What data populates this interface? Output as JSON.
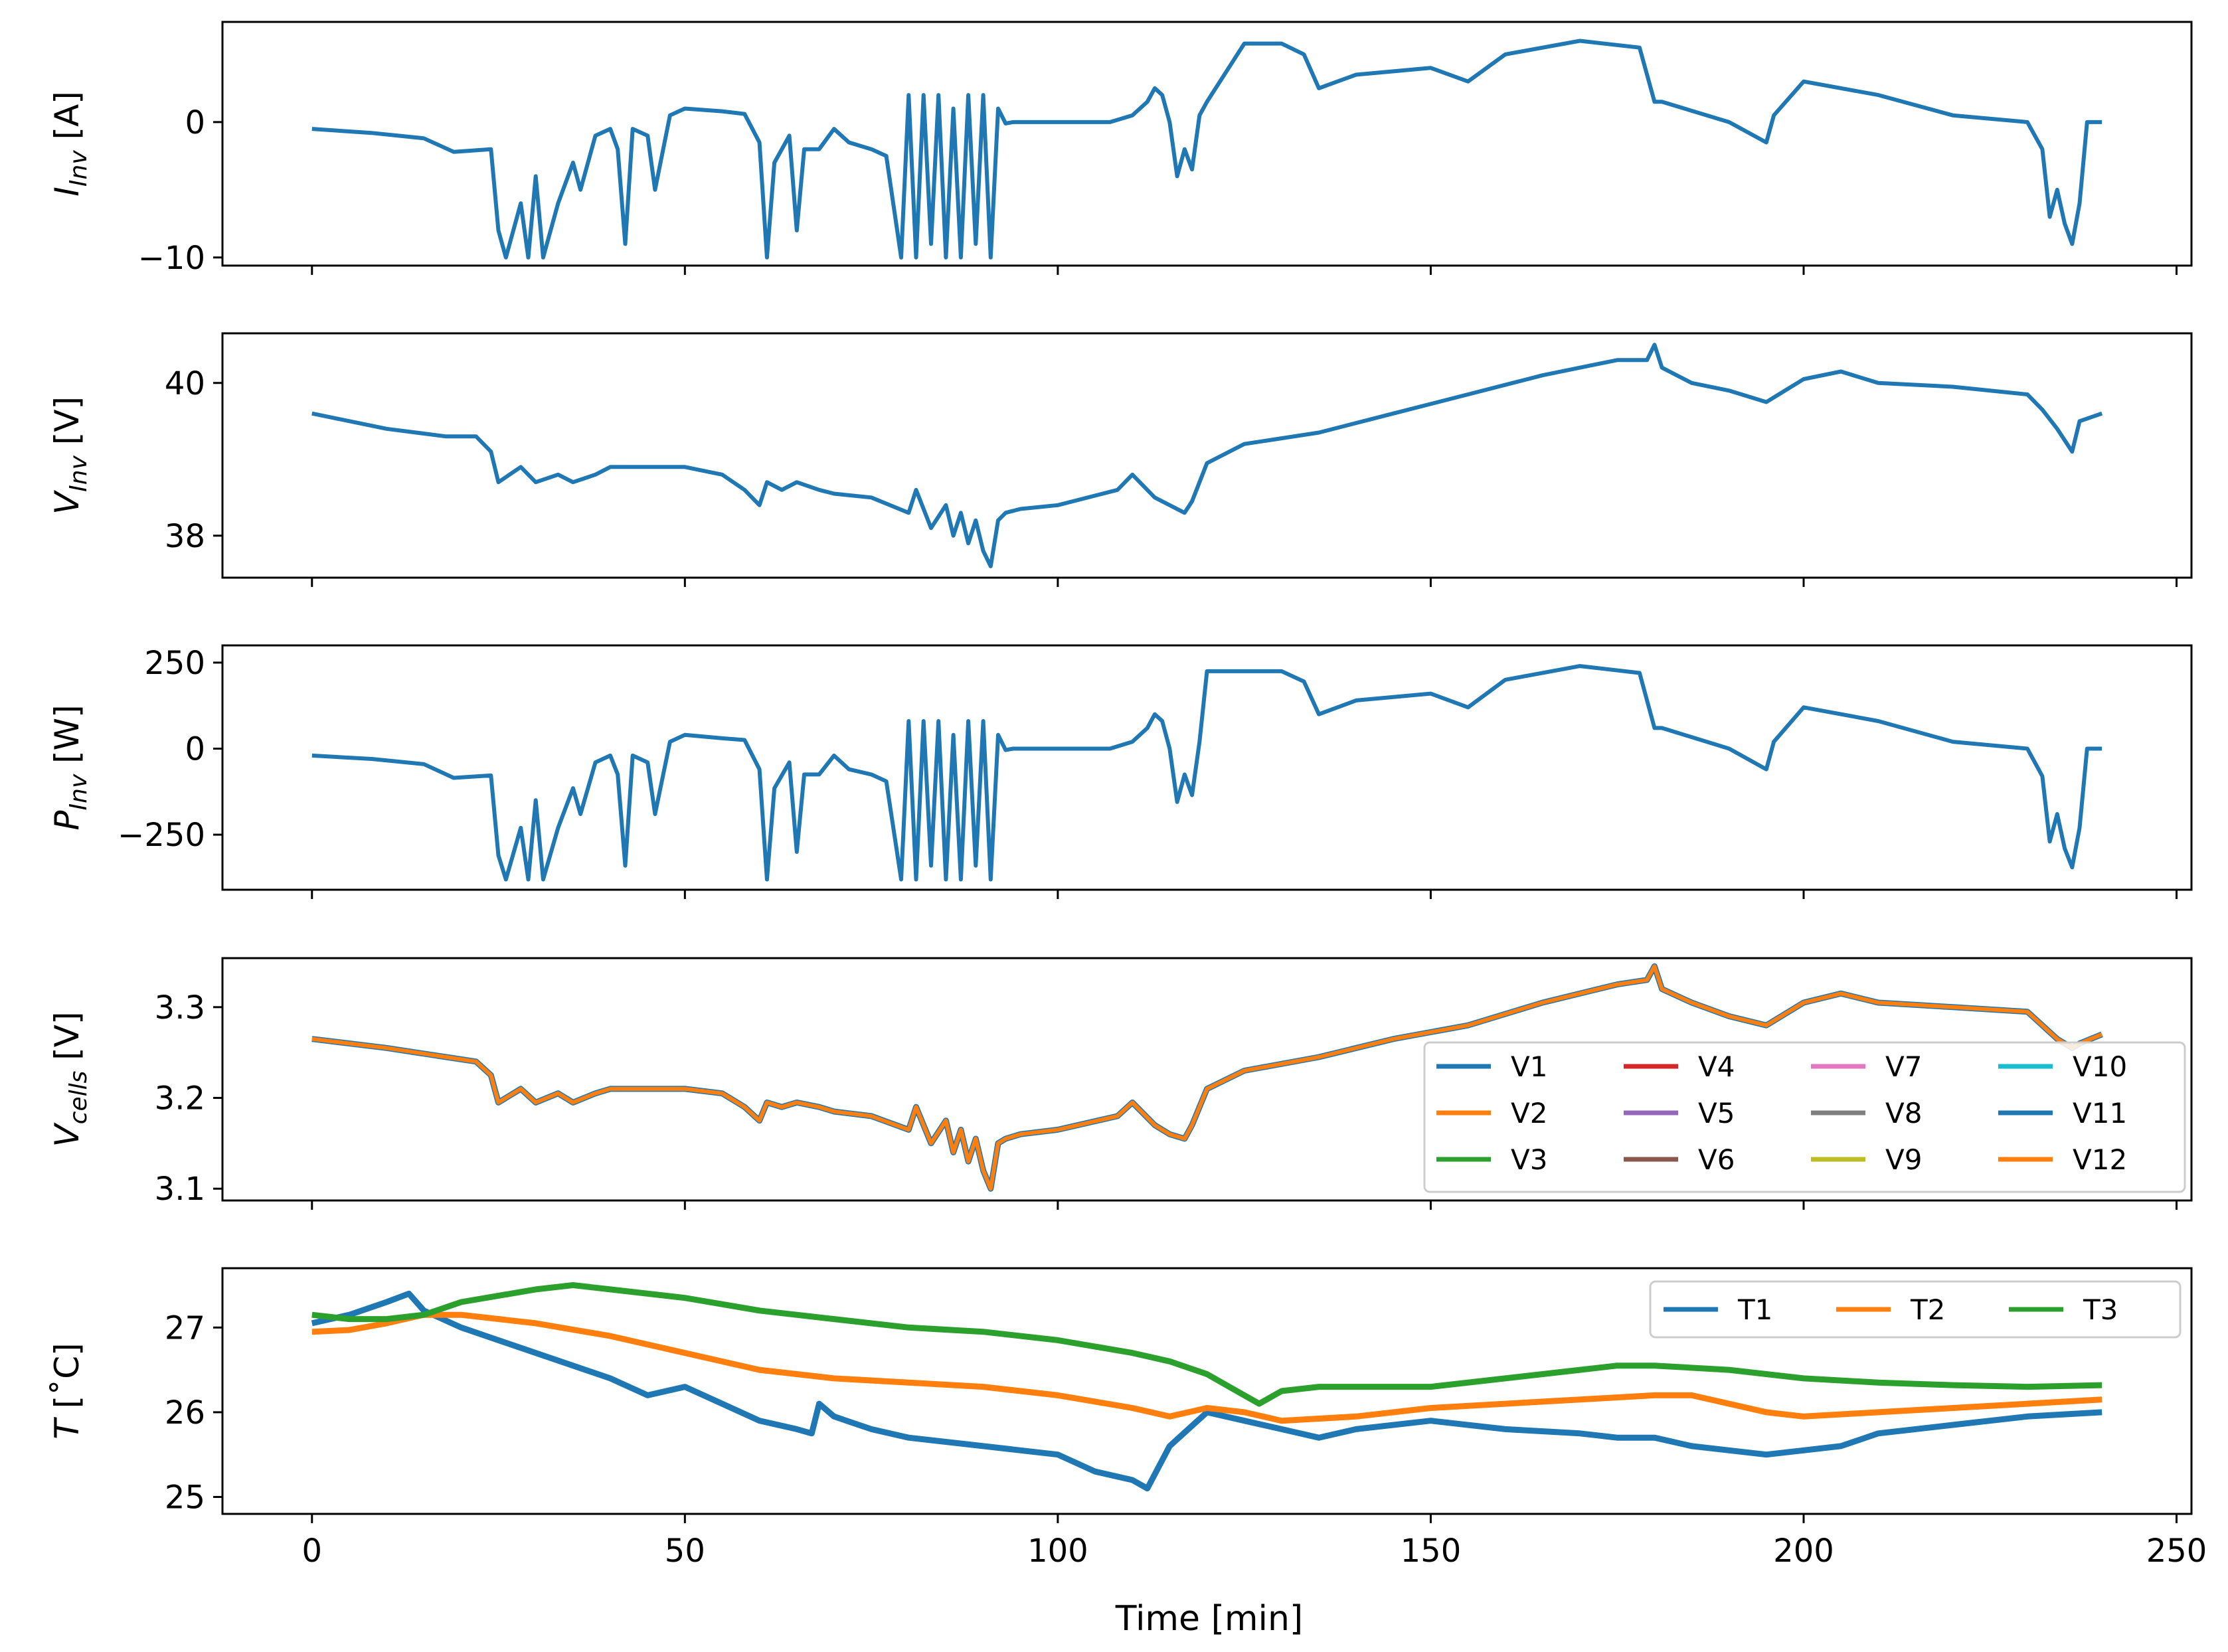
{
  "figure": {
    "xlabel": "Time [min]",
    "xticks": [
      "0",
      "50",
      "100",
      "150",
      "200",
      "250"
    ]
  },
  "chart_data": [
    {
      "type": "line",
      "panel": "current",
      "ylabel": "I_Inv [A]",
      "ylabel_main": "I",
      "ylabel_sub": "Inv",
      "ylabel_unit": " [A]",
      "xlim": [
        -12,
        252
      ],
      "ylim": [
        -10.6,
        7.4
      ],
      "yticks": [
        0,
        -10
      ],
      "ytick_labels": [
        "0",
        "−10"
      ],
      "series": [
        {
          "name": "I_Inv",
          "color": "#1f77b4",
          "x": [
            0,
            8,
            15,
            19,
            24,
            25,
            26,
            28,
            29,
            30,
            31,
            33,
            35,
            36,
            38,
            40,
            41,
            42,
            43,
            45,
            46,
            48,
            50,
            55,
            58,
            60,
            61,
            62,
            64,
            65,
            66,
            68,
            70,
            72,
            75,
            77,
            79,
            80,
            81,
            82,
            83,
            84,
            85,
            86,
            87,
            88,
            89,
            90,
            91,
            92,
            93,
            94,
            95,
            100,
            107,
            110,
            112,
            113,
            114,
            115,
            116,
            117,
            118,
            119,
            120,
            125,
            130,
            133,
            135,
            140,
            150,
            155,
            160,
            170,
            178,
            180,
            181,
            190,
            195,
            196,
            200,
            210,
            220,
            230,
            232,
            233,
            234,
            235,
            236,
            237,
            238,
            239,
            240
          ],
          "y": [
            -0.5,
            -0.8,
            -1.2,
            -2.2,
            -2,
            -8,
            -10,
            -6,
            -10,
            -4,
            -10,
            -6,
            -3,
            -5,
            -1,
            -0.5,
            -2,
            -9,
            -0.5,
            -1,
            -5,
            0.5,
            1,
            0.8,
            0.6,
            -1.5,
            -10,
            -3,
            -1,
            -8,
            -2,
            -2,
            -0.5,
            -1.5,
            -2,
            -2.5,
            -10,
            2,
            -10,
            2,
            -9,
            2,
            -10,
            1,
            -10,
            2,
            -9,
            2,
            -10,
            1,
            -0.1,
            0,
            0,
            0,
            0,
            0.5,
            1.5,
            2.5,
            2.0,
            0,
            -4,
            -2,
            -3.5,
            0.5,
            1.5,
            5.8,
            5.8,
            5.0,
            2.5,
            3.5,
            4.0,
            3.0,
            5.0,
            6.0,
            5.5,
            1.5,
            1.5,
            0,
            -1.5,
            0.5,
            3.0,
            2.0,
            0.5,
            0,
            -2,
            -7,
            -5,
            -7.5,
            -9,
            -6,
            0,
            0,
            0
          ]
        }
      ]
    },
    {
      "type": "line",
      "panel": "voltage",
      "ylabel": "V_Inv [V]",
      "ylabel_main": "V",
      "ylabel_sub": "Inv",
      "ylabel_unit": " [V]",
      "xlim": [
        -12,
        252
      ],
      "ylim": [
        37.45,
        40.65
      ],
      "yticks": [
        40,
        38
      ],
      "ytick_labels": [
        "40",
        "38"
      ],
      "series": [
        {
          "name": "V_Inv",
          "color": "#1f77b4",
          "x": [
            0,
            10,
            18,
            22,
            24,
            25,
            28,
            30,
            33,
            35,
            38,
            40,
            45,
            50,
            55,
            58,
            60,
            61,
            63,
            65,
            68,
            70,
            75,
            80,
            81,
            83,
            85,
            86,
            87,
            88,
            89,
            90,
            91,
            92,
            93,
            95,
            100,
            108,
            110,
            113,
            115,
            117,
            118,
            120,
            125,
            135,
            145,
            155,
            165,
            175,
            179,
            180,
            181,
            185,
            190,
            195,
            200,
            205,
            210,
            220,
            230,
            232,
            234,
            236,
            237,
            240
          ],
          "y": [
            39.6,
            39.4,
            39.3,
            39.3,
            39.1,
            38.7,
            38.9,
            38.7,
            38.8,
            38.7,
            38.8,
            38.9,
            38.9,
            38.9,
            38.8,
            38.6,
            38.4,
            38.7,
            38.6,
            38.7,
            38.6,
            38.55,
            38.5,
            38.3,
            38.6,
            38.1,
            38.4,
            38.0,
            38.3,
            37.9,
            38.2,
            37.8,
            37.6,
            38.2,
            38.3,
            38.35,
            38.4,
            38.6,
            38.8,
            38.5,
            38.4,
            38.3,
            38.45,
            38.95,
            39.2,
            39.35,
            39.6,
            39.85,
            40.1,
            40.3,
            40.3,
            40.5,
            40.2,
            40.0,
            39.9,
            39.75,
            40.05,
            40.15,
            40.0,
            39.95,
            39.85,
            39.65,
            39.4,
            39.1,
            39.5,
            39.6
          ]
        }
      ]
    },
    {
      "type": "line",
      "panel": "power",
      "ylabel": "P_Inv [W]",
      "ylabel_main": "P",
      "ylabel_sub": "Inv",
      "ylabel_unit": " [W]",
      "xlim": [
        -12,
        252
      ],
      "ylim": [
        -410,
        300
      ],
      "yticks": [
        250,
        0,
        -250
      ],
      "ytick_labels": [
        "250",
        "0",
        "−250"
      ],
      "series": [
        {
          "name": "P_Inv",
          "color": "#1f77b4",
          "x": [
            0,
            8,
            15,
            19,
            24,
            25,
            26,
            28,
            29,
            30,
            31,
            33,
            35,
            36,
            38,
            40,
            41,
            42,
            43,
            45,
            46,
            48,
            50,
            55,
            58,
            60,
            61,
            62,
            64,
            65,
            66,
            68,
            70,
            72,
            75,
            77,
            79,
            80,
            81,
            82,
            83,
            84,
            85,
            86,
            87,
            88,
            89,
            90,
            91,
            92,
            93,
            94,
            95,
            100,
            107,
            110,
            112,
            113,
            114,
            115,
            116,
            117,
            118,
            119,
            120,
            125,
            130,
            133,
            135,
            140,
            150,
            155,
            160,
            170,
            178,
            180,
            181,
            190,
            195,
            196,
            200,
            210,
            220,
            230,
            232,
            233,
            234,
            235,
            236,
            237,
            238,
            239,
            240
          ],
          "y": [
            -20,
            -30,
            -45,
            -85,
            -78,
            -310,
            -380,
            -230,
            -380,
            -150,
            -380,
            -230,
            -115,
            -190,
            -40,
            -20,
            -75,
            -340,
            -20,
            -40,
            -190,
            20,
            40,
            30,
            25,
            -60,
            -380,
            -115,
            -40,
            -300,
            -75,
            -75,
            -20,
            -60,
            -75,
            -95,
            -380,
            80,
            -380,
            80,
            -340,
            80,
            -380,
            40,
            -380,
            80,
            -340,
            80,
            -380,
            40,
            -4,
            0,
            0,
            0,
            0,
            20,
            60,
            100,
            80,
            0,
            -155,
            -75,
            -135,
            20,
            225,
            225,
            225,
            195,
            100,
            140,
            160,
            120,
            200,
            240,
            220,
            60,
            60,
            0,
            -60,
            20,
            120,
            80,
            20,
            0,
            -80,
            -270,
            -190,
            -290,
            -345,
            -230,
            0,
            0,
            0
          ]
        }
      ]
    },
    {
      "type": "line",
      "panel": "cells",
      "ylabel": "V_cells [V]",
      "ylabel_main": "V",
      "ylabel_sub": "cells",
      "ylabel_unit": " [V]",
      "xlim": [
        -12,
        252
      ],
      "ylim": [
        3.087,
        3.354
      ],
      "yticks": [
        3.3,
        3.2,
        3.1
      ],
      "ytick_labels": [
        "3.3",
        "3.2",
        "3.1"
      ],
      "legend": [
        "V1",
        "V2",
        "V3",
        "V4",
        "V5",
        "V6",
        "V7",
        "V8",
        "V9",
        "V10",
        "V11",
        "V12"
      ],
      "legend_colors": [
        "#1f77b4",
        "#ff7f0e",
        "#2ca02c",
        "#d62728",
        "#9467bd",
        "#8c564b",
        "#e377c2",
        "#7f7f7f",
        "#bcbd22",
        "#17becf",
        "#1f77b4",
        "#ff7f0e"
      ],
      "legend_location": "lower right",
      "series": [
        {
          "name": "cells",
          "color": "#ff7f0e",
          "x": [
            0,
            10,
            18,
            22,
            24,
            25,
            28,
            30,
            33,
            35,
            38,
            40,
            45,
            50,
            55,
            58,
            60,
            61,
            63,
            65,
            68,
            70,
            75,
            80,
            81,
            83,
            85,
            86,
            87,
            88,
            89,
            90,
            91,
            92,
            93,
            95,
            100,
            108,
            110,
            113,
            115,
            117,
            118,
            120,
            125,
            135,
            145,
            155,
            165,
            175,
            179,
            180,
            181,
            185,
            190,
            195,
            200,
            205,
            210,
            220,
            230,
            232,
            234,
            236,
            237,
            240
          ],
          "y": [
            3.265,
            3.255,
            3.245,
            3.24,
            3.225,
            3.195,
            3.21,
            3.195,
            3.205,
            3.195,
            3.205,
            3.21,
            3.21,
            3.21,
            3.205,
            3.19,
            3.175,
            3.195,
            3.19,
            3.195,
            3.19,
            3.185,
            3.18,
            3.165,
            3.19,
            3.15,
            3.175,
            3.14,
            3.165,
            3.13,
            3.155,
            3.12,
            3.1,
            3.15,
            3.155,
            3.16,
            3.165,
            3.18,
            3.195,
            3.17,
            3.16,
            3.155,
            3.17,
            3.21,
            3.23,
            3.245,
            3.265,
            3.28,
            3.305,
            3.325,
            3.33,
            3.345,
            3.32,
            3.305,
            3.29,
            3.28,
            3.305,
            3.315,
            3.305,
            3.3,
            3.295,
            3.28,
            3.265,
            3.255,
            3.26,
            3.27
          ]
        }
      ]
    },
    {
      "type": "line",
      "panel": "temperature",
      "ylabel": "T [°C]",
      "ylabel_main": "T",
      "ylabel_sub": "",
      "ylabel_unit": " [˚C]",
      "xlim": [
        -12,
        252
      ],
      "ylim": [
        24.8,
        27.7
      ],
      "yticks": [
        27,
        26,
        25
      ],
      "ytick_labels": [
        "27",
        "26",
        "25"
      ],
      "legend_location": "upper right",
      "series": [
        {
          "name": "T1",
          "color": "#1f77b4",
          "x": [
            0,
            5,
            10,
            13,
            15,
            20,
            30,
            40,
            45,
            50,
            55,
            60,
            65,
            67,
            68,
            70,
            75,
            80,
            90,
            100,
            105,
            110,
            112,
            115,
            120,
            125,
            130,
            135,
            140,
            150,
            160,
            170,
            175,
            180,
            185,
            190,
            195,
            200,
            205,
            210,
            220,
            230,
            240
          ],
          "y": [
            27.05,
            27.15,
            27.3,
            27.4,
            27.2,
            27.0,
            26.7,
            26.4,
            26.2,
            26.3,
            26.1,
            25.9,
            25.8,
            25.75,
            26.1,
            25.95,
            25.8,
            25.7,
            25.6,
            25.5,
            25.3,
            25.2,
            25.1,
            25.6,
            26.0,
            25.9,
            25.8,
            25.7,
            25.8,
            25.9,
            25.8,
            25.75,
            25.7,
            25.7,
            25.6,
            25.55,
            25.5,
            25.55,
            25.6,
            25.75,
            25.85,
            25.95,
            26.0
          ]
        },
        {
          "name": "T2",
          "color": "#ff7f0e",
          "x": [
            0,
            5,
            10,
            15,
            20,
            30,
            40,
            50,
            60,
            70,
            80,
            90,
            100,
            110,
            115,
            120,
            125,
            130,
            140,
            150,
            160,
            170,
            180,
            185,
            190,
            195,
            200,
            210,
            220,
            230,
            240
          ],
          "y": [
            26.95,
            26.97,
            27.05,
            27.15,
            27.15,
            27.05,
            26.9,
            26.7,
            26.5,
            26.4,
            26.35,
            26.3,
            26.2,
            26.05,
            25.95,
            26.05,
            26.0,
            25.9,
            25.95,
            26.05,
            26.1,
            26.15,
            26.2,
            26.2,
            26.1,
            26.0,
            25.95,
            26.0,
            26.05,
            26.1,
            26.15
          ]
        },
        {
          "name": "T3",
          "color": "#2ca02c",
          "x": [
            0,
            5,
            10,
            15,
            20,
            30,
            35,
            40,
            50,
            60,
            70,
            80,
            90,
            100,
            110,
            115,
            120,
            125,
            127,
            130,
            135,
            140,
            150,
            160,
            170,
            175,
            180,
            190,
            195,
            200,
            210,
            220,
            230,
            240
          ],
          "y": [
            27.15,
            27.1,
            27.1,
            27.15,
            27.3,
            27.45,
            27.5,
            27.45,
            27.35,
            27.2,
            27.1,
            27.0,
            26.95,
            26.85,
            26.7,
            26.6,
            26.45,
            26.2,
            26.1,
            26.25,
            26.3,
            26.3,
            26.3,
            26.4,
            26.5,
            26.55,
            26.55,
            26.5,
            26.45,
            26.4,
            26.35,
            26.32,
            26.3,
            26.32
          ]
        }
      ]
    }
  ]
}
